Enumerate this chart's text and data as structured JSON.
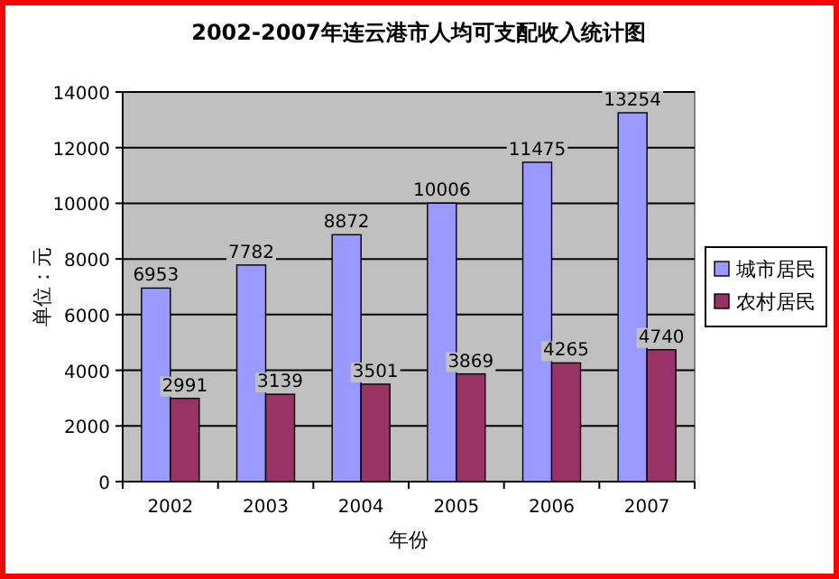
{
  "chart_data": {
    "type": "bar",
    "title": "2002-2007年连云港市人均可支配收入统计图",
    "xlabel": "年份",
    "ylabel": "单位：元",
    "categories": [
      "2002",
      "2003",
      "2004",
      "2005",
      "2006",
      "2007"
    ],
    "series": [
      {
        "name": "城市居民",
        "color": "#9999ff",
        "values": [
          6953,
          7782,
          8872,
          10006,
          11475,
          13254
        ]
      },
      {
        "name": "农村居民",
        "color": "#993366",
        "values": [
          2991,
          3139,
          3501,
          3869,
          4265,
          4740
        ]
      }
    ],
    "ylim": [
      0,
      14000
    ],
    "yticks": [
      0,
      2000,
      4000,
      6000,
      8000,
      10000,
      12000,
      14000
    ],
    "grid": "y",
    "legend": "right",
    "data_labels": true
  }
}
